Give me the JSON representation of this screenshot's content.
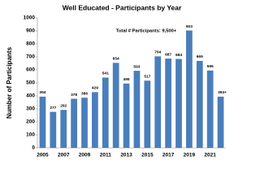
{
  "chart_data": {
    "type": "bar",
    "title": "Well Educated - Participants by Year",
    "y_label": "Number of Participants",
    "annotation": "Total # Participants: 9,500+",
    "categories": [
      "2005",
      null,
      "2007",
      null,
      "2009",
      null,
      "2011",
      null,
      "2013",
      null,
      "2015",
      null,
      "2017",
      null,
      "2019",
      null,
      "2021",
      null
    ],
    "values": [
      394,
      277,
      292,
      378,
      386,
      429,
      541,
      654,
      495,
      593,
      517,
      704,
      687,
      684,
      903,
      669,
      595,
      394
    ],
    "value_labels": [
      "394",
      "277",
      "292",
      "378",
      "386",
      "429",
      "541",
      "654",
      "495",
      "593",
      "517",
      "704",
      "687",
      "684",
      "903",
      "669",
      "595",
      "394+"
    ],
    "color": "#4a7ebb",
    "ylim": [
      0,
      1000
    ],
    "yticks": [
      0,
      100,
      200,
      300,
      400,
      500,
      600,
      700,
      800,
      900,
      1000
    ],
    "grid": false
  }
}
